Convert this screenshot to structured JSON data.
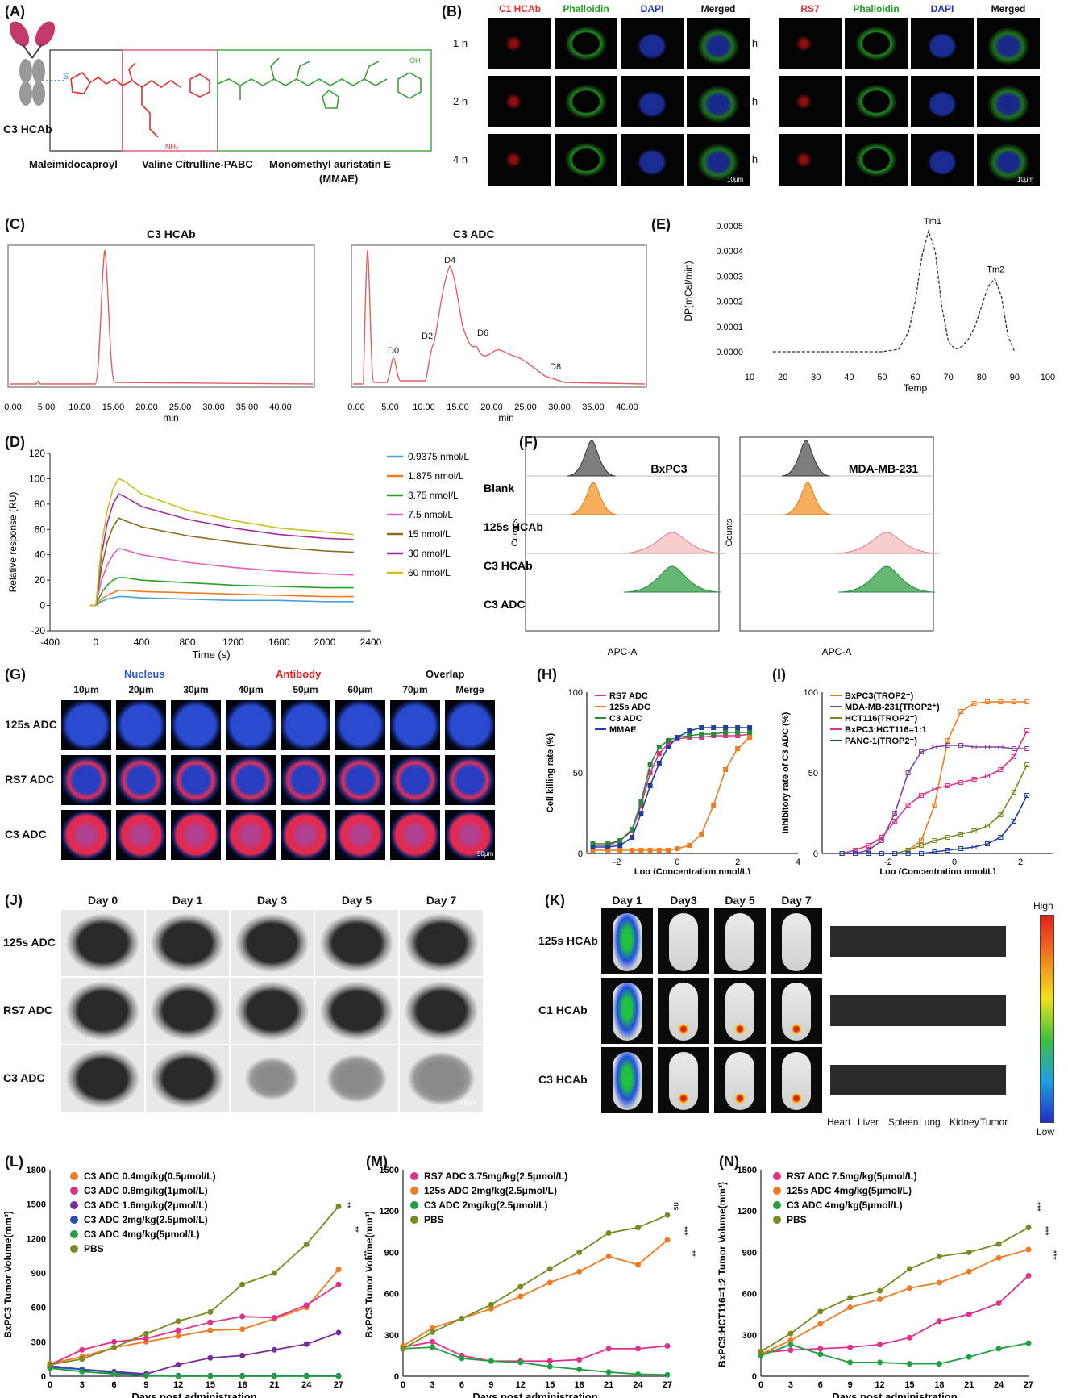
{
  "panels": {
    "A": "(A)",
    "B": "(B)",
    "C": "(C)",
    "D": "(D)",
    "E": "(E)",
    "F": "(F)",
    "G": "(G)",
    "H": "(H)",
    "I": "(I)",
    "J": "(J)",
    "K": "(K)",
    "L": "(L)",
    "M": "(M)",
    "N": "(N)"
  },
  "A": {
    "antibody_label": "C3 HCAb",
    "segment1": "Maleimidocaproyl",
    "segment2": "Valine Citrulline-PABC",
    "segment3": "Monomethyl auristatin E",
    "segment3b": "(MMAE)"
  },
  "B": {
    "left_cols": [
      "C1 HCAb",
      "Phalloidin",
      "DAPI",
      "Merged"
    ],
    "right_cols": [
      "RS7",
      "Phalloidin",
      "DAPI",
      "Merged"
    ],
    "rows": [
      "1 h",
      "2 h",
      "4 h"
    ],
    "scale": "10μm"
  },
  "C": {
    "left_title": "C3 HCAb",
    "right_title": "C3 ADC",
    "x_ticks": [
      "0.00",
      "5.00",
      "10.00",
      "15.00",
      "20.00",
      "25.00",
      "30.00",
      "35.00",
      "40.00"
    ],
    "xlabel": "min",
    "peaks": [
      "D0",
      "D2",
      "D4",
      "D6",
      "D8"
    ]
  },
  "E": {
    "ylabel": "DP(mCal/min)",
    "xlabel": "Temp",
    "y_ticks": [
      "0.0005",
      "0.0004",
      "0.0003",
      "0.0002",
      "0.0001",
      "0.0000"
    ],
    "x_ticks": [
      "10",
      "20",
      "30",
      "40",
      "50",
      "60",
      "70",
      "80",
      "90",
      "100"
    ],
    "peak1": "Tm1",
    "peak2": "Tm2"
  },
  "D": {
    "ylabel": "Relative response (RU)",
    "xlabel": "Time (s)",
    "y_ticks": [
      "120",
      "100",
      "80",
      "60",
      "40",
      "20",
      "0",
      "-20"
    ],
    "x_ticks": [
      "-400",
      "0",
      "400",
      "800",
      "1200",
      "1600",
      "2000",
      "2400"
    ],
    "legend": [
      "0.9375 nmol/L",
      "1.875 nmol/L",
      "3.75 nmol/L",
      "7.5 nmol/L",
      "15 nmol/L",
      "30 nmol/L",
      "60 nmol/L"
    ],
    "colors": [
      "#4a9fd8",
      "#f07a20",
      "#28a028",
      "#e060c0",
      "#8a6a20",
      "#a030a0",
      "#c8c020"
    ]
  },
  "F": {
    "rows": [
      "Blank",
      "125s HCAb",
      "C3 HCAb",
      "C3 ADC"
    ],
    "left_title": "BxPC3",
    "right_title": "MDA-MB-231",
    "ylabel": "Counts",
    "xlabel": "APC-A"
  },
  "G": {
    "headers": [
      "Nucleus",
      "Antibody",
      "Overlap"
    ],
    "depths": [
      "10μm",
      "20μm",
      "30μm",
      "40μm",
      "50μm",
      "60μm",
      "70μm",
      "Merge"
    ],
    "rows": [
      "125s ADC",
      "RS7 ADC",
      "C3 ADC"
    ],
    "scale": "50μm"
  },
  "H": {
    "ylabel": "Cell killing rate (%)",
    "xlabel": "Log (Concentration nmol/L)",
    "legend": [
      "RS7 ADC",
      "125s ADC",
      "C3 ADC",
      "MMAE"
    ],
    "colors": [
      "#e0308a",
      "#f07a20",
      "#2a8a3a",
      "#2040a0"
    ],
    "y_ticks": [
      "100",
      "50",
      "0"
    ],
    "x_ticks": [
      "-2",
      "0",
      "2",
      "4"
    ]
  },
  "I": {
    "ylabel": "Inhibitory rate of C3 ADC (%)",
    "xlabel": "Log (Concentration nmol/L)",
    "legend": [
      "BxPC3(TROP2⁺)",
      "MDA-MB-231(TROP2⁺)",
      "HCT116(TROP2⁻)",
      "BxPC3:HCT116=1:1",
      "PANC-1(TROP2⁻)"
    ],
    "colors": [
      "#f07a20",
      "#8040a0",
      "#7a8a20",
      "#e0308a",
      "#2040a0"
    ],
    "y_ticks": [
      "100",
      "50",
      "0"
    ],
    "x_ticks": [
      "-2",
      "0",
      "2"
    ]
  },
  "J": {
    "days": [
      "Day 0",
      "Day 1",
      "Day 3",
      "Day 5",
      "Day 7"
    ],
    "rows": [
      "125s ADC",
      "RS7 ADC",
      "C3 ADC"
    ],
    "scale": "50μm"
  },
  "K": {
    "days": [
      "Day 1",
      "Day3",
      "Day 5",
      "Day 7"
    ],
    "rows": [
      "125s HCAb",
      "C1 HCAb",
      "C3 HCAb"
    ],
    "organs": [
      "Heart",
      "Liver",
      "Spleen",
      "Lung",
      "Kidney",
      "Tumor"
    ],
    "high": "High",
    "low": "Low"
  },
  "L": {
    "ylabel": "BxPC3 Tumor Volume(mm³)",
    "xlabel": "Days post administration",
    "legend": [
      "C3 ADC 0.4mg/kg(0.5μmol/L)",
      "C3 ADC 0.8mg/kg(1μmol/L)",
      "C3 ADC 1.6mg/kg(2μmol/L)",
      "C3 ADC 2mg/kg(2.5μmol/L)",
      "C3 ADC 4mg/kg(5μmol/L)",
      "PBS"
    ],
    "y_ticks": [
      "1800",
      "1500",
      "1200",
      "900",
      "600",
      "300",
      "0"
    ],
    "x_ticks": [
      "0",
      "3",
      "6",
      "9",
      "12",
      "15",
      "18",
      "21",
      "24",
      "27"
    ],
    "sig": [
      "**",
      "**",
      "***",
      "***"
    ]
  },
  "M": {
    "ylabel": "BxPC3 Tumor Volume(mm³)",
    "xlabel": "Days post administration",
    "legend": [
      "RS7 ADC 3.75mg/kg(2.5μmol/L)",
      "125s ADC 2mg/kg(2.5μmol/L)",
      "C3 ADC 2mg/kg(2.5μmol/L)",
      "PBS"
    ],
    "y_ticks": [
      "1500",
      "1200",
      "900",
      "600",
      "300",
      "0"
    ],
    "x_ticks": [
      "0",
      "3",
      "6",
      "9",
      "12",
      "15",
      "18",
      "21",
      "24",
      "27"
    ],
    "sig": [
      "ns",
      "***",
      "**"
    ]
  },
  "N": {
    "ylabel": "BxPC3:HCT116=1:2 Tumor Volume(mm³)",
    "xlabel": "Days post administration",
    "legend": [
      "RS7 ADC 7.5mg/kg(5μmol/L)",
      "125s ADC 4mg/kg(5μmol/L)",
      "C3 ADC 4mg/kg(5μmol/L)",
      "PBS"
    ],
    "y_ticks": [
      "1500",
      "1200",
      "900",
      "600",
      "300",
      "0"
    ],
    "x_ticks": [
      "0",
      "3",
      "6",
      "9",
      "12",
      "15",
      "18",
      "21",
      "24",
      "27"
    ],
    "sig": [
      "***",
      "***",
      "***"
    ]
  },
  "chart_data": [
    {
      "type": "line",
      "id": "D",
      "xlabel": "Time (s)",
      "ylabel": "Relative response (RU)",
      "xlim": [
        -400,
        2400
      ],
      "ylim": [
        -20,
        120
      ],
      "x": [
        -50,
        0,
        50,
        100,
        150,
        200,
        250,
        400,
        800,
        1200,
        1600,
        2000,
        2250
      ],
      "series": [
        {
          "name": "0.9375 nmol/L",
          "values": [
            0,
            0,
            3,
            5,
            6,
            7,
            7,
            6,
            5,
            4,
            4,
            3,
            3
          ]
        },
        {
          "name": "1.875 nmol/L",
          "values": [
            0,
            0,
            5,
            8,
            10,
            12,
            12,
            11,
            10,
            9,
            8,
            7,
            7
          ]
        },
        {
          "name": "3.75 nmol/L",
          "values": [
            0,
            0,
            10,
            16,
            20,
            22,
            22,
            20,
            18,
            16,
            15,
            14,
            14
          ]
        },
        {
          "name": "7.5 nmol/L",
          "values": [
            0,
            0,
            20,
            32,
            40,
            45,
            44,
            40,
            34,
            30,
            27,
            25,
            24
          ]
        },
        {
          "name": "15 nmol/L",
          "values": [
            0,
            0,
            30,
            50,
            62,
            69,
            67,
            62,
            55,
            50,
            46,
            43,
            42
          ]
        },
        {
          "name": "30 nmol/L",
          "values": [
            0,
            0,
            40,
            65,
            80,
            88,
            86,
            78,
            68,
            61,
            56,
            53,
            52
          ]
        },
        {
          "name": "60 nmol/L",
          "values": [
            0,
            0,
            48,
            75,
            92,
            100,
            98,
            88,
            75,
            67,
            61,
            58,
            56
          ]
        }
      ]
    },
    {
      "type": "line",
      "id": "E",
      "xlabel": "Temp",
      "ylabel": "DP(mCal/min)",
      "xlim": [
        10,
        100
      ],
      "ylim": [
        0,
        0.0005
      ],
      "x": [
        17,
        20,
        30,
        40,
        50,
        55,
        58,
        60,
        62,
        64,
        66,
        68,
        70,
        72,
        74,
        76,
        78,
        80,
        82,
        84,
        86,
        88,
        90
      ],
      "series": [
        {
          "name": "",
          "values": [
            0,
            0,
            0,
            0,
            0,
            1e-05,
            8e-05,
            0.0002,
            0.00038,
            0.00048,
            0.0004,
            0.00018,
            4e-05,
            1e-05,
            2e-05,
            5e-05,
            0.0001,
            0.00018,
            0.00026,
            0.00029,
            0.00022,
            6e-05,
            0
          ]
        }
      ],
      "annotations": [
        "Tm1",
        "Tm2"
      ]
    },
    {
      "type": "line",
      "id": "H",
      "xlabel": "Log (Concentration nmol/L)",
      "ylabel": "Cell killing rate (%)",
      "xlim": [
        -3,
        4
      ],
      "ylim": [
        0,
        100
      ],
      "x": [
        -2.8,
        -2.3,
        -1.9,
        -1.5,
        -1.2,
        -0.9,
        -0.6,
        -0.3,
        0,
        0.4,
        0.8,
        1.2,
        1.6,
        2,
        2.4
      ],
      "series": [
        {
          "name": "RS7 ADC",
          "values": [
            5,
            5,
            8,
            14,
            30,
            50,
            62,
            68,
            71,
            72,
            72,
            73,
            73,
            73,
            74
          ]
        },
        {
          "name": "125s ADC",
          "values": [
            2,
            2,
            2,
            2,
            2,
            2,
            2,
            2,
            3,
            5,
            12,
            30,
            52,
            65,
            72
          ]
        },
        {
          "name": "C3 ADC",
          "values": [
            6,
            6,
            8,
            15,
            32,
            55,
            66,
            70,
            72,
            73,
            74,
            74,
            75,
            75,
            75
          ]
        },
        {
          "name": "MMAE",
          "values": [
            4,
            4,
            5,
            10,
            25,
            42,
            56,
            66,
            72,
            76,
            78,
            78,
            78,
            78,
            78
          ]
        }
      ]
    },
    {
      "type": "line",
      "id": "I",
      "xlabel": "Log (Concentration nmol/L)",
      "ylabel": "Inhibitory rate of C3 ADC (%)",
      "xlim": [
        -4,
        3
      ],
      "ylim": [
        0,
        100
      ],
      "x": [
        -3.4,
        -3,
        -2.6,
        -2.2,
        -1.8,
        -1.4,
        -1,
        -0.6,
        -0.2,
        0.2,
        0.6,
        1,
        1.4,
        1.8,
        2.2
      ],
      "series": [
        {
          "name": "BxPC3(TROP2⁺)",
          "values": [
            0,
            0,
            0,
            0,
            0,
            2,
            8,
            30,
            70,
            88,
            93,
            94,
            94,
            94,
            94
          ]
        },
        {
          "name": "MDA-MB-231(TROP2⁺)",
          "values": [
            0,
            0,
            2,
            8,
            25,
            50,
            63,
            66,
            67,
            67,
            66,
            66,
            66,
            65,
            65
          ]
        },
        {
          "name": "HCT116(TROP2⁻)",
          "values": [
            0,
            0,
            0,
            0,
            0,
            2,
            5,
            8,
            10,
            12,
            14,
            17,
            24,
            38,
            55
          ]
        },
        {
          "name": "BxPC3:HCT116=1:1",
          "values": [
            0,
            2,
            5,
            10,
            20,
            30,
            36,
            40,
            42,
            44,
            46,
            48,
            52,
            60,
            76
          ]
        },
        {
          "name": "PANC-1(TROP2⁻)",
          "values": [
            0,
            0,
            0,
            0,
            0,
            0,
            0,
            1,
            2,
            3,
            4,
            6,
            10,
            20,
            36
          ]
        }
      ]
    },
    {
      "type": "line",
      "id": "L",
      "xlabel": "Days post administration",
      "ylabel": "BxPC3 Tumor Volume(mm³)",
      "xlim": [
        0,
        27
      ],
      "ylim": [
        0,
        1800
      ],
      "x": [
        0,
        3,
        6,
        9,
        12,
        15,
        18,
        21,
        24,
        27
      ],
      "series": [
        {
          "name": "C3 ADC 0.4mg/kg(0.5μmol/L)",
          "values": [
            110,
            170,
            250,
            300,
            350,
            400,
            410,
            500,
            600,
            930
          ]
        },
        {
          "name": "C3 ADC 0.8mg/kg(1μmol/L)",
          "values": [
            100,
            230,
            300,
            330,
            400,
            470,
            520,
            510,
            620,
            800
          ]
        },
        {
          "name": "C3 ADC 1.6mg/kg(2μmol/L)",
          "values": [
            90,
            60,
            40,
            20,
            100,
            160,
            180,
            230,
            280,
            380
          ]
        },
        {
          "name": "C3 ADC 2mg/kg(2.5μmol/L)",
          "values": [
            80,
            60,
            30,
            10,
            5,
            5,
            5,
            5,
            5,
            5
          ]
        },
        {
          "name": "C3 ADC 4mg/kg(5μmol/L)",
          "values": [
            70,
            40,
            20,
            5,
            0,
            0,
            0,
            0,
            0,
            0
          ]
        },
        {
          "name": "PBS",
          "values": [
            100,
            150,
            250,
            370,
            480,
            560,
            800,
            900,
            1150,
            1480
          ]
        }
      ]
    },
    {
      "type": "line",
      "id": "M",
      "xlabel": "Days post administration",
      "ylabel": "BxPC3 Tumor Volume(mm³)",
      "xlim": [
        0,
        27
      ],
      "ylim": [
        0,
        1500
      ],
      "x": [
        0,
        3,
        6,
        9,
        12,
        15,
        18,
        21,
        24,
        27
      ],
      "series": [
        {
          "name": "RS7 ADC 3.75mg/kg(2.5μmol/L)",
          "values": [
            210,
            250,
            150,
            110,
            110,
            110,
            120,
            200,
            200,
            220
          ]
        },
        {
          "name": "125s ADC 2mg/kg(2.5μmol/L)",
          "values": [
            220,
            350,
            420,
            490,
            580,
            680,
            760,
            870,
            810,
            990
          ]
        },
        {
          "name": "C3 ADC 2mg/kg(2.5μmol/L)",
          "values": [
            200,
            210,
            130,
            110,
            100,
            70,
            50,
            30,
            15,
            10
          ]
        },
        {
          "name": "PBS",
          "values": [
            200,
            320,
            420,
            520,
            650,
            780,
            900,
            1040,
            1080,
            1170
          ]
        }
      ]
    },
    {
      "type": "line",
      "id": "N",
      "xlabel": "Days post administration",
      "ylabel": "BxPC3:HCT116=1:2 Tumor Volume(mm³)",
      "xlim": [
        0,
        27
      ],
      "ylim": [
        0,
        1500
      ],
      "x": [
        0,
        3,
        6,
        9,
        12,
        15,
        18,
        21,
        24,
        27
      ],
      "series": [
        {
          "name": "RS7 ADC 7.5mg/kg(5μmol/L)",
          "values": [
            170,
            190,
            200,
            210,
            230,
            280,
            400,
            450,
            530,
            730
          ]
        },
        {
          "name": "125s ADC 4mg/kg(5μmol/L)",
          "values": [
            160,
            260,
            380,
            500,
            560,
            640,
            680,
            760,
            860,
            920
          ]
        },
        {
          "name": "C3 ADC 4mg/kg(5μmol/L)",
          "values": [
            150,
            230,
            160,
            100,
            100,
            90,
            90,
            140,
            200,
            240
          ]
        },
        {
          "name": "PBS",
          "values": [
            180,
            310,
            470,
            570,
            620,
            780,
            870,
            900,
            960,
            1080
          ]
        }
      ]
    }
  ]
}
